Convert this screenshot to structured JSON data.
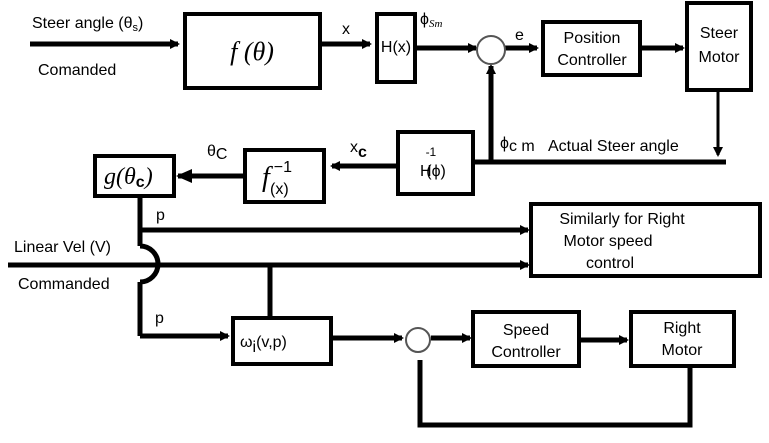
{
  "inputs": {
    "steer_angle_label": "Steer angle (θ",
    "steer_angle_sub": "s",
    "steer_angle_close": ")",
    "steer_commanded": "Comanded",
    "linear_vel_label": "Linear Vel (V)",
    "linear_commanded": "Commanded"
  },
  "blocks": {
    "f_theta": "f (θ)",
    "h_x": "H(x)",
    "position_controller_line1": "Position",
    "position_controller_line2": "Controller",
    "steer_motor_line1": "Steer",
    "steer_motor_line2": "Motor",
    "h_inv_main": "H",
    "h_inv_sup": "-1",
    "h_inv_arg": "(ϕ)",
    "f_inv_main": "f",
    "f_inv_sup": "−1",
    "f_inv_arg": "(x)",
    "g_theta_main": "g(θ",
    "g_theta_sub": "c",
    "g_theta_close": ")",
    "omega_main": "ω",
    "omega_sub": "i",
    "omega_args": "(v,p)",
    "speed_controller_line1": "Speed",
    "speed_controller_line2": "Controller",
    "right_motor_line1": "Right",
    "right_motor_line2": "Motor",
    "similarly_line1": "Similarly for Right",
    "similarly_line2": "Motor speed",
    "similarly_line3": "control"
  },
  "signals": {
    "x": "x",
    "phi_sm_main": "ϕ",
    "phi_sm_sub": "Sm",
    "e": "e",
    "phi_cm_main": "ϕ",
    "phi_cm_sub": "c m",
    "actual_steer_angle": "Actual Steer angle",
    "x_c_main": "x",
    "x_c_sub": "c",
    "theta_c_main": "θ",
    "theta_c_sub": "C",
    "p_top": "p",
    "p_bottom": "p"
  }
}
